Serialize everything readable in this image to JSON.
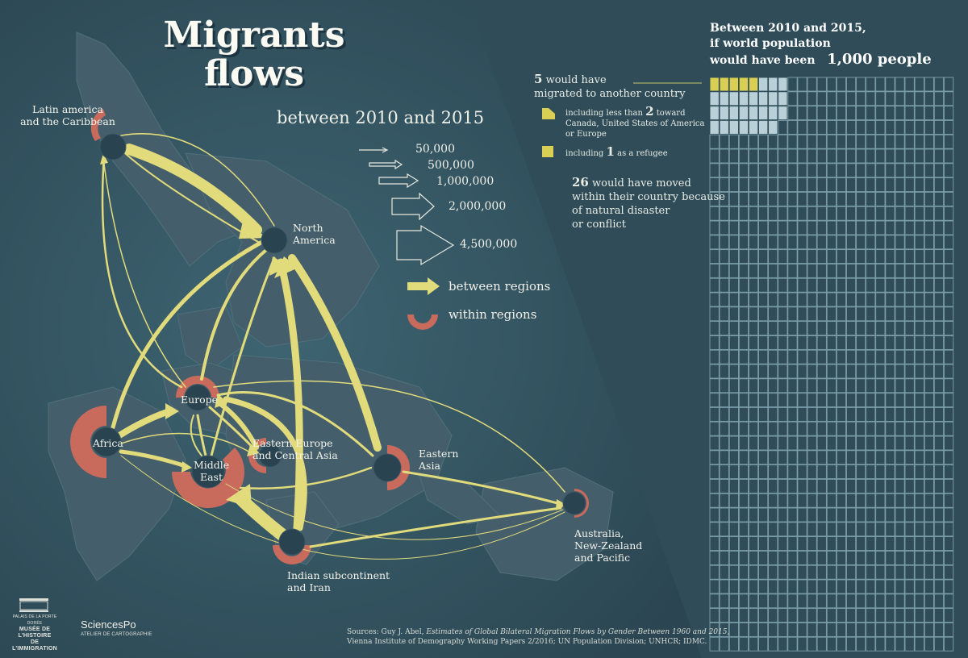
{
  "title_line1": "Migrants",
  "title_line2": "flows",
  "subtitle": "between 2010 and 2015",
  "scale_legend": [
    "50,000",
    "500,000",
    "1,000,000",
    "2,000,000",
    "4,500,000"
  ],
  "type_legend": {
    "between": "between regions",
    "within": "within regions"
  },
  "regions": {
    "latam1": "Latin america",
    "latam2": "and the Caribbean",
    "na1": "North",
    "na2": "America",
    "europe": "Europe",
    "africa": "Africa",
    "me1": "Middle",
    "me2": "East",
    "eeca1": "Eastern Europe",
    "eeca2": "and Central Asia",
    "ea1": "Eastern",
    "ea2": "Asia",
    "ind1": "Indian subcontinent",
    "ind2": "and Iran",
    "aus1": "Australia,",
    "aus2": "New-Zealand",
    "aus3": "and Pacific"
  },
  "stats": {
    "head1": "Between 2010 and 2015,",
    "head2": "if world population",
    "head3": "would have been",
    "head_number": "1,000 people",
    "migrated_number": "5",
    "migrated_text1": "would have",
    "migrated_text2": "migrated to another country",
    "sub1_pre": "including less than",
    "sub1_number": "2",
    "sub1_post": "toward",
    "sub1_line2": "Canada, United States of America",
    "sub1_line3": "or Europe",
    "sub2_pre": "including",
    "sub2_number": "1",
    "sub2_post": "as a refugee",
    "moved_number": "26",
    "moved_text1": "would have moved",
    "moved_text2": "within their country because",
    "moved_text3": "of natural disaster",
    "moved_text4": "or conflict"
  },
  "sources": {
    "line1_pre": "Sources: Guy J. Abel, ",
    "line1_italic": "Estimates of Global Bilateral Migration Flows by Gender Between 1960 and 2015",
    "line1_post": ",",
    "line2": "Vienna Institute of Demography Working Papers 2/2016; UN Population Division; UNHCR; IDMC."
  },
  "logos": {
    "museum1": "PALAIS DE LA PORTE DORÉE",
    "museum2": "MUSÉE DE L'HISTOIRE",
    "museum3": "DE L'IMMIGRATION",
    "sciencespo": "SciencesPo",
    "atelier": "ATELIER DE CARTOGRAPHIE"
  },
  "colors": {
    "background": "#2f4c58",
    "land": "#445f6b",
    "flow": "#e2db7c",
    "within": "#c86a5c",
    "grid_line": "#7da0ad",
    "migrant_cell": "#d9cf55"
  },
  "waffle": {
    "total": 1000,
    "migrated_internationally": 5,
    "toward_north_america_europe": 2,
    "refugees": 1,
    "displaced_internally": 26
  }
}
